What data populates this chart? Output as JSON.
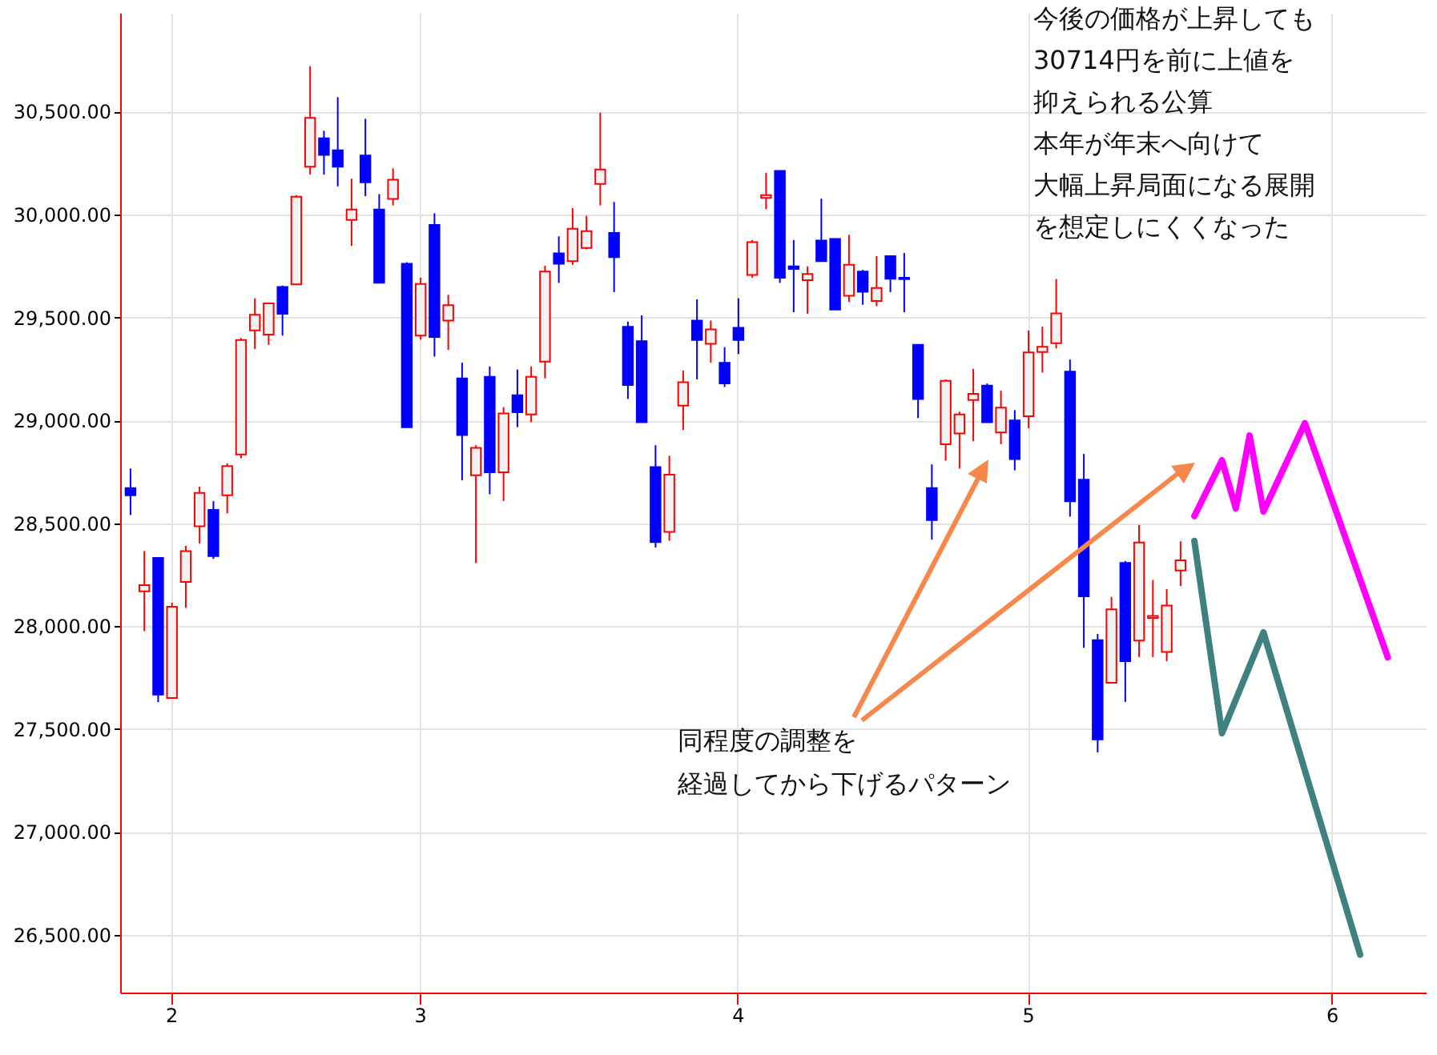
{
  "chart_data": {
    "type": "candlestick",
    "categories": [
      null,
      null,
      null,
      "2",
      null,
      null,
      null,
      null,
      null,
      null,
      null,
      null,
      null,
      null,
      null,
      null,
      null,
      null,
      null,
      null,
      null,
      "3",
      null,
      null,
      null,
      null,
      null,
      null,
      null,
      null,
      null,
      null,
      null,
      null,
      null,
      null,
      null,
      null,
      null,
      null,
      null,
      null,
      null,
      null,
      "4",
      null,
      null,
      null,
      null,
      null,
      null,
      null,
      null,
      null,
      null,
      null,
      null,
      null,
      null,
      null,
      null,
      null,
      null,
      null,
      null,
      "5",
      null,
      null,
      null,
      null,
      null,
      null,
      null,
      null,
      null,
      null,
      null,
      null,
      null,
      null,
      null,
      null,
      null,
      null,
      null,
      null,
      null,
      "6",
      null,
      null,
      null,
      null,
      null,
      null
    ],
    "ohlc": [
      [
        28671,
        28766,
        28540,
        28636
      ],
      [
        28169,
        28365,
        27976,
        28199
      ],
      [
        28332,
        28332,
        27631,
        27668
      ],
      [
        27651,
        28114,
        27651,
        28094
      ],
      [
        28215,
        28390,
        28089,
        28365
      ],
      [
        28485,
        28678,
        28402,
        28648
      ],
      [
        28565,
        28608,
        28327,
        28340
      ],
      [
        28636,
        28791,
        28548,
        28778
      ],
      [
        28834,
        29400,
        28816,
        29390
      ],
      [
        29437,
        29593,
        29347,
        29513
      ],
      [
        29417,
        29573,
        29367,
        29568
      ],
      [
        29648,
        29655,
        29412,
        29518
      ],
      [
        29661,
        30094,
        29661,
        30087
      ],
      [
        30232,
        30721,
        30194,
        30470
      ],
      [
        30370,
        30407,
        30194,
        30290
      ],
      [
        30312,
        30570,
        30137,
        30232
      ],
      [
        29974,
        30174,
        29848,
        30024
      ],
      [
        30287,
        30465,
        30089,
        30157
      ],
      [
        30024,
        30099,
        29668,
        29668
      ],
      [
        30076,
        30224,
        30044,
        30169
      ],
      [
        29761,
        29768,
        28967,
        28967
      ],
      [
        29412,
        29693,
        29392,
        29663
      ],
      [
        29949,
        30006,
        29310,
        29405
      ],
      [
        29485,
        29610,
        29342,
        29560
      ],
      [
        29204,
        29280,
        28709,
        28929
      ],
      [
        28733,
        28879,
        28307,
        28866
      ],
      [
        29212,
        29262,
        28641,
        28748
      ],
      [
        28748,
        29064,
        28608,
        29034
      ],
      [
        29122,
        29247,
        28967,
        29039
      ],
      [
        29029,
        29262,
        28991,
        29212
      ],
      [
        29285,
        29751,
        29204,
        29723
      ],
      [
        29811,
        29894,
        29668,
        29761
      ],
      [
        29773,
        30031,
        29756,
        29931
      ],
      [
        29838,
        29994,
        29831,
        29919
      ],
      [
        30149,
        30495,
        30044,
        30219
      ],
      [
        29911,
        30061,
        29623,
        29793
      ],
      [
        29455,
        29480,
        29104,
        29172
      ],
      [
        29385,
        29510,
        28991,
        28991
      ],
      [
        28773,
        28879,
        28382,
        28408
      ],
      [
        28458,
        28828,
        28415,
        28736
      ],
      [
        29072,
        29242,
        28954,
        29185
      ],
      [
        29485,
        29588,
        29199,
        29390
      ],
      [
        29372,
        29485,
        29280,
        29442
      ],
      [
        29280,
        29355,
        29162,
        29179
      ],
      [
        29450,
        29593,
        29322,
        29390
      ],
      [
        29706,
        29876,
        29693,
        29866
      ],
      [
        30081,
        30202,
        30026,
        30094
      ],
      [
        30212,
        30212,
        29668,
        29693
      ],
      [
        29748,
        29876,
        29525,
        29736
      ],
      [
        29681,
        29748,
        29518,
        29711
      ],
      [
        29874,
        30077,
        29773,
        29773
      ],
      [
        29881,
        29881,
        29538,
        29538
      ],
      [
        29605,
        29901,
        29575,
        29756
      ],
      [
        29723,
        29731,
        29562,
        29625
      ],
      [
        29580,
        29798,
        29555,
        29643
      ],
      [
        29798,
        29801,
        29623,
        29688
      ],
      [
        29693,
        29813,
        29525,
        29686
      ],
      [
        29367,
        29367,
        29011,
        29104
      ],
      [
        28671,
        28786,
        28420,
        28515
      ],
      [
        28884,
        29199,
        28804,
        29192
      ],
      [
        28936,
        29042,
        28766,
        29029
      ],
      [
        29099,
        29250,
        28899,
        29129
      ],
      [
        29169,
        29179,
        28991,
        28991
      ],
      [
        28941,
        29144,
        28884,
        29062
      ],
      [
        29000,
        29050,
        28757,
        28812
      ],
      [
        29020,
        29437,
        28962,
        29330
      ],
      [
        29332,
        29455,
        29232,
        29357
      ],
      [
        29375,
        29687,
        29350,
        29520
      ],
      [
        29237,
        29295,
        28532,
        28607
      ],
      [
        28712,
        28837,
        27895,
        28145
      ],
      [
        27932,
        27962,
        27387,
        27450
      ],
      [
        27725,
        28142,
        27725,
        28082
      ],
      [
        28307,
        28317,
        27632,
        27830
      ],
      [
        27930,
        28492,
        27850,
        28407
      ],
      [
        28040,
        28225,
        27850,
        28050
      ],
      [
        27875,
        28180,
        27830,
        28100
      ],
      [
        28270,
        28412,
        28195,
        28320
      ],
      null,
      null,
      null,
      null,
      null,
      null,
      null,
      null,
      null,
      null,
      null,
      null,
      null,
      null,
      null,
      null,
      null
    ],
    "series": [
      {
        "type": "line",
        "color": "#ff00ff",
        "values": [
          null,
          null,
          null,
          null,
          null,
          null,
          null,
          null,
          null,
          null,
          null,
          null,
          null,
          null,
          null,
          null,
          null,
          null,
          null,
          null,
          null,
          null,
          null,
          null,
          null,
          null,
          null,
          null,
          null,
          null,
          null,
          null,
          null,
          null,
          null,
          null,
          null,
          null,
          null,
          null,
          null,
          null,
          null,
          null,
          null,
          null,
          null,
          null,
          null,
          null,
          null,
          null,
          null,
          null,
          null,
          null,
          null,
          null,
          null,
          null,
          null,
          null,
          null,
          null,
          null,
          null,
          null,
          null,
          null,
          null,
          null,
          null,
          null,
          null,
          null,
          null,
          null,
          28535,
          null,
          28806,
          28572,
          28926,
          28557,
          null,
          null,
          28986,
          null,
          null,
          null,
          null,
          null,
          27849,
          null,
          null
        ]
      },
      {
        "type": "line",
        "color": "#3f8080",
        "values": [
          null,
          null,
          null,
          null,
          null,
          null,
          null,
          null,
          null,
          null,
          null,
          null,
          null,
          null,
          null,
          null,
          null,
          null,
          null,
          null,
          null,
          null,
          null,
          null,
          null,
          null,
          null,
          null,
          null,
          null,
          null,
          null,
          null,
          null,
          null,
          null,
          null,
          null,
          null,
          null,
          null,
          null,
          null,
          null,
          null,
          null,
          null,
          null,
          null,
          null,
          null,
          null,
          null,
          null,
          null,
          null,
          null,
          null,
          null,
          null,
          null,
          null,
          null,
          null,
          null,
          null,
          null,
          null,
          null,
          null,
          null,
          null,
          null,
          null,
          null,
          null,
          null,
          28414,
          null,
          27480,
          null,
          null,
          27970,
          null,
          null,
          null,
          null,
          null,
          null,
          26404,
          null,
          null,
          null,
          null
        ]
      }
    ],
    "ylim": [
      26220,
      30980
    ],
    "yticks": [
      {
        "value": 26500,
        "label": "26,500.00"
      },
      {
        "value": 27000,
        "label": "27,000.00"
      },
      {
        "value": 27500,
        "label": "27,500.00"
      },
      {
        "value": 28000,
        "label": "28,000.00"
      },
      {
        "value": 28500,
        "label": "28,500.00"
      },
      {
        "value": 29000,
        "label": "29,000.00"
      },
      {
        "value": 29500,
        "label": "29,500.00"
      },
      {
        "value": 30000,
        "label": "30,000.00"
      },
      {
        "value": 30500,
        "label": "30,500.00"
      }
    ],
    "grid": true,
    "annotations": [
      "今後の価格が上昇しても",
      "30714円を前に上値を",
      "抑えられる公算",
      "本年が年末へ向けて",
      "大幅上昇局面になる展開",
      "を想定しにくくなった",
      "同程度の調整を",
      "経過してから下げるパターン"
    ]
  }
}
